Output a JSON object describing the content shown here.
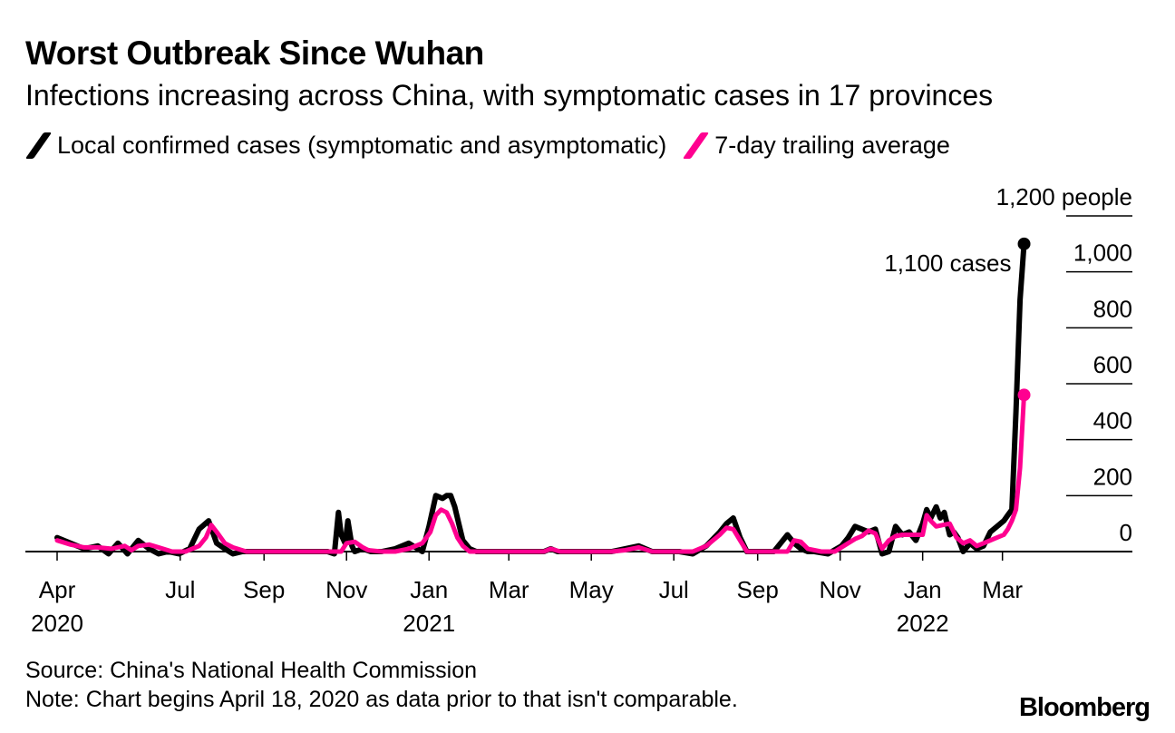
{
  "title": "Worst Outbreak Since Wuhan",
  "subtitle": "Infections increasing across China, with symptomatic cases in 17 provinces",
  "legend": {
    "daily": "Local confirmed cases (symptomatic and asymptomatic)",
    "average": "7-day trailing average"
  },
  "colors": {
    "daily": "#000000",
    "average": "#ff0090"
  },
  "source": "Source: China's National Health Commission",
  "note": "Note: Chart begins April 18, 2020 as data prior to that isn't comparable.",
  "brand": "Bloomberg",
  "chart_data": {
    "type": "line",
    "title": "Worst Outbreak Since Wuhan",
    "y_unit_label": "1,200 people",
    "ylim": [
      -80,
      1200
    ],
    "yticks": [
      1200,
      1000,
      800,
      600,
      400,
      200,
      0
    ],
    "ytick_labels": [
      "1,200 people",
      "1,000",
      "800",
      "600",
      "400",
      "200",
      "0"
    ],
    "xlim": [
      0,
      720
    ],
    "x_unit": "days since 2020-04-01",
    "xticks": [
      {
        "x": 0,
        "label": "Apr",
        "year": "2020"
      },
      {
        "x": 91,
        "label": "Jul",
        "year": ""
      },
      {
        "x": 153,
        "label": "Sep",
        "year": ""
      },
      {
        "x": 214,
        "label": "Nov",
        "year": ""
      },
      {
        "x": 275,
        "label": "Jan",
        "year": "2021"
      },
      {
        "x": 334,
        "label": "Mar",
        "year": ""
      },
      {
        "x": 395,
        "label": "May",
        "year": ""
      },
      {
        "x": 456,
        "label": "Jul",
        "year": ""
      },
      {
        "x": 518,
        "label": "Sep",
        "year": ""
      },
      {
        "x": 579,
        "label": "Nov",
        "year": ""
      },
      {
        "x": 640,
        "label": "Jan",
        "year": "2022"
      },
      {
        "x": 699,
        "label": "Mar",
        "year": ""
      }
    ],
    "annotation": {
      "label": "1,100 cases",
      "x": 715,
      "y": 1100
    },
    "series": [
      {
        "name": "Local confirmed cases (symptomatic and asymptomatic)",
        "color": "#000000",
        "x": [
          0,
          10,
          20,
          30,
          38,
          45,
          52,
          60,
          68,
          75,
          82,
          90,
          98,
          105,
          112,
          118,
          124,
          130,
          137,
          145,
          160,
          175,
          190,
          200,
          205,
          208,
          210,
          213,
          215,
          218,
          220,
          226,
          232,
          240,
          250,
          260,
          270,
          275,
          280,
          285,
          288,
          291,
          294,
          297,
          300,
          305,
          310,
          320,
          330,
          340,
          350,
          360,
          365,
          370,
          380,
          390,
          400,
          410,
          420,
          430,
          440,
          450,
          460,
          470,
          480,
          490,
          495,
          500,
          505,
          510,
          515,
          520,
          525,
          530,
          540,
          545,
          550,
          555,
          560,
          570,
          580,
          585,
          590,
          595,
          600,
          605,
          610,
          615,
          620,
          625,
          630,
          635,
          640,
          643,
          646,
          650,
          653,
          656,
          660,
          663,
          666,
          670,
          675,
          680,
          685,
          690,
          695,
          700,
          703,
          706,
          709,
          712,
          715
        ],
        "y": [
          50,
          30,
          10,
          20,
          -10,
          30,
          -20,
          40,
          10,
          -10,
          0,
          -10,
          10,
          80,
          110,
          30,
          10,
          -10,
          0,
          0,
          0,
          0,
          0,
          0,
          -10,
          140,
          60,
          30,
          110,
          20,
          0,
          10,
          0,
          0,
          10,
          30,
          0,
          90,
          200,
          190,
          200,
          200,
          160,
          100,
          40,
          10,
          0,
          0,
          0,
          0,
          0,
          0,
          10,
          0,
          0,
          0,
          0,
          0,
          10,
          20,
          0,
          0,
          0,
          -10,
          20,
          70,
          100,
          120,
          50,
          0,
          0,
          0,
          0,
          0,
          60,
          30,
          10,
          0,
          0,
          -10,
          20,
          50,
          90,
          80,
          70,
          80,
          -10,
          0,
          90,
          60,
          70,
          40,
          100,
          150,
          120,
          160,
          120,
          140,
          60,
          70,
          50,
          0,
          30,
          10,
          20,
          70,
          90,
          110,
          130,
          150,
          500,
          900,
          1100
        ]
      },
      {
        "name": "7-day trailing average",
        "color": "#ff0090",
        "x": [
          0,
          10,
          20,
          30,
          40,
          50,
          55,
          60,
          68,
          75,
          85,
          95,
          105,
          110,
          114,
          118,
          124,
          130,
          140,
          160,
          190,
          200,
          210,
          214,
          220,
          226,
          230,
          240,
          250,
          260,
          270,
          276,
          280,
          284,
          288,
          292,
          296,
          300,
          305,
          315,
          330,
          340,
          350,
          360,
          365,
          372,
          380,
          390,
          400,
          410,
          420,
          430,
          440,
          450,
          460,
          470,
          480,
          490,
          495,
          500,
          505,
          510,
          515,
          520,
          530,
          540,
          545,
          550,
          555,
          565,
          575,
          585,
          590,
          595,
          600,
          605,
          610,
          615,
          620,
          625,
          630,
          640,
          643,
          646,
          650,
          655,
          660,
          665,
          670,
          675,
          680,
          685,
          690,
          695,
          700,
          703,
          706,
          709,
          712,
          715
        ],
        "y": [
          40,
          25,
          15,
          15,
          10,
          20,
          5,
          20,
          25,
          15,
          0,
          0,
          20,
          50,
          95,
          70,
          30,
          15,
          0,
          0,
          0,
          0,
          0,
          30,
          35,
          15,
          5,
          0,
          0,
          10,
          30,
          70,
          130,
          150,
          140,
          100,
          50,
          20,
          0,
          0,
          0,
          0,
          0,
          0,
          10,
          0,
          0,
          0,
          0,
          0,
          5,
          15,
          0,
          0,
          0,
          0,
          20,
          60,
          85,
          80,
          40,
          0,
          0,
          0,
          0,
          0,
          40,
          35,
          10,
          0,
          0,
          30,
          45,
          55,
          75,
          65,
          10,
          40,
          55,
          60,
          60,
          60,
          130,
          110,
          90,
          95,
          100,
          50,
          30,
          40,
          20,
          30,
          40,
          50,
          60,
          80,
          110,
          150,
          300,
          560
        ]
      }
    ]
  }
}
